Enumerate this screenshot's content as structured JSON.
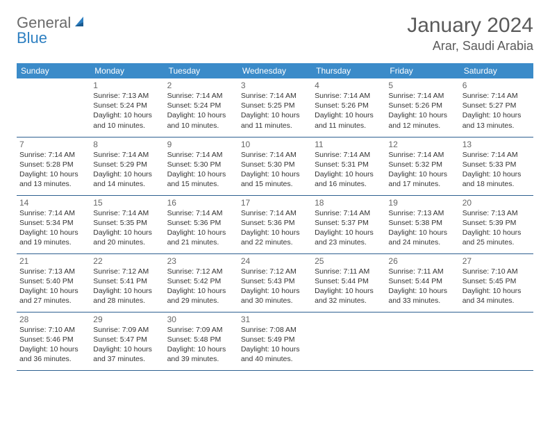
{
  "logo": {
    "text1": "General",
    "text2": "Blue"
  },
  "title": "January 2024",
  "location": "Arar, Saudi Arabia",
  "colors": {
    "header_bg": "#3b8bc9",
    "header_text": "#ffffff",
    "row_border": "#2d5f8f",
    "logo_gray": "#6a6a6a",
    "logo_blue": "#2d7fc1",
    "title_color": "#5a5a5a"
  },
  "weekdays": [
    "Sunday",
    "Monday",
    "Tuesday",
    "Wednesday",
    "Thursday",
    "Friday",
    "Saturday"
  ],
  "weeks": [
    [
      null,
      {
        "n": "1",
        "sr": "Sunrise: 7:13 AM",
        "ss": "Sunset: 5:24 PM",
        "dl": "Daylight: 10 hours and 10 minutes."
      },
      {
        "n": "2",
        "sr": "Sunrise: 7:14 AM",
        "ss": "Sunset: 5:24 PM",
        "dl": "Daylight: 10 hours and 10 minutes."
      },
      {
        "n": "3",
        "sr": "Sunrise: 7:14 AM",
        "ss": "Sunset: 5:25 PM",
        "dl": "Daylight: 10 hours and 11 minutes."
      },
      {
        "n": "4",
        "sr": "Sunrise: 7:14 AM",
        "ss": "Sunset: 5:26 PM",
        "dl": "Daylight: 10 hours and 11 minutes."
      },
      {
        "n": "5",
        "sr": "Sunrise: 7:14 AM",
        "ss": "Sunset: 5:26 PM",
        "dl": "Daylight: 10 hours and 12 minutes."
      },
      {
        "n": "6",
        "sr": "Sunrise: 7:14 AM",
        "ss": "Sunset: 5:27 PM",
        "dl": "Daylight: 10 hours and 13 minutes."
      }
    ],
    [
      {
        "n": "7",
        "sr": "Sunrise: 7:14 AM",
        "ss": "Sunset: 5:28 PM",
        "dl": "Daylight: 10 hours and 13 minutes."
      },
      {
        "n": "8",
        "sr": "Sunrise: 7:14 AM",
        "ss": "Sunset: 5:29 PM",
        "dl": "Daylight: 10 hours and 14 minutes."
      },
      {
        "n": "9",
        "sr": "Sunrise: 7:14 AM",
        "ss": "Sunset: 5:30 PM",
        "dl": "Daylight: 10 hours and 15 minutes."
      },
      {
        "n": "10",
        "sr": "Sunrise: 7:14 AM",
        "ss": "Sunset: 5:30 PM",
        "dl": "Daylight: 10 hours and 15 minutes."
      },
      {
        "n": "11",
        "sr": "Sunrise: 7:14 AM",
        "ss": "Sunset: 5:31 PM",
        "dl": "Daylight: 10 hours and 16 minutes."
      },
      {
        "n": "12",
        "sr": "Sunrise: 7:14 AM",
        "ss": "Sunset: 5:32 PM",
        "dl": "Daylight: 10 hours and 17 minutes."
      },
      {
        "n": "13",
        "sr": "Sunrise: 7:14 AM",
        "ss": "Sunset: 5:33 PM",
        "dl": "Daylight: 10 hours and 18 minutes."
      }
    ],
    [
      {
        "n": "14",
        "sr": "Sunrise: 7:14 AM",
        "ss": "Sunset: 5:34 PM",
        "dl": "Daylight: 10 hours and 19 minutes."
      },
      {
        "n": "15",
        "sr": "Sunrise: 7:14 AM",
        "ss": "Sunset: 5:35 PM",
        "dl": "Daylight: 10 hours and 20 minutes."
      },
      {
        "n": "16",
        "sr": "Sunrise: 7:14 AM",
        "ss": "Sunset: 5:36 PM",
        "dl": "Daylight: 10 hours and 21 minutes."
      },
      {
        "n": "17",
        "sr": "Sunrise: 7:14 AM",
        "ss": "Sunset: 5:36 PM",
        "dl": "Daylight: 10 hours and 22 minutes."
      },
      {
        "n": "18",
        "sr": "Sunrise: 7:14 AM",
        "ss": "Sunset: 5:37 PM",
        "dl": "Daylight: 10 hours and 23 minutes."
      },
      {
        "n": "19",
        "sr": "Sunrise: 7:13 AM",
        "ss": "Sunset: 5:38 PM",
        "dl": "Daylight: 10 hours and 24 minutes."
      },
      {
        "n": "20",
        "sr": "Sunrise: 7:13 AM",
        "ss": "Sunset: 5:39 PM",
        "dl": "Daylight: 10 hours and 25 minutes."
      }
    ],
    [
      {
        "n": "21",
        "sr": "Sunrise: 7:13 AM",
        "ss": "Sunset: 5:40 PM",
        "dl": "Daylight: 10 hours and 27 minutes."
      },
      {
        "n": "22",
        "sr": "Sunrise: 7:12 AM",
        "ss": "Sunset: 5:41 PM",
        "dl": "Daylight: 10 hours and 28 minutes."
      },
      {
        "n": "23",
        "sr": "Sunrise: 7:12 AM",
        "ss": "Sunset: 5:42 PM",
        "dl": "Daylight: 10 hours and 29 minutes."
      },
      {
        "n": "24",
        "sr": "Sunrise: 7:12 AM",
        "ss": "Sunset: 5:43 PM",
        "dl": "Daylight: 10 hours and 30 minutes."
      },
      {
        "n": "25",
        "sr": "Sunrise: 7:11 AM",
        "ss": "Sunset: 5:44 PM",
        "dl": "Daylight: 10 hours and 32 minutes."
      },
      {
        "n": "26",
        "sr": "Sunrise: 7:11 AM",
        "ss": "Sunset: 5:44 PM",
        "dl": "Daylight: 10 hours and 33 minutes."
      },
      {
        "n": "27",
        "sr": "Sunrise: 7:10 AM",
        "ss": "Sunset: 5:45 PM",
        "dl": "Daylight: 10 hours and 34 minutes."
      }
    ],
    [
      {
        "n": "28",
        "sr": "Sunrise: 7:10 AM",
        "ss": "Sunset: 5:46 PM",
        "dl": "Daylight: 10 hours and 36 minutes."
      },
      {
        "n": "29",
        "sr": "Sunrise: 7:09 AM",
        "ss": "Sunset: 5:47 PM",
        "dl": "Daylight: 10 hours and 37 minutes."
      },
      {
        "n": "30",
        "sr": "Sunrise: 7:09 AM",
        "ss": "Sunset: 5:48 PM",
        "dl": "Daylight: 10 hours and 39 minutes."
      },
      {
        "n": "31",
        "sr": "Sunrise: 7:08 AM",
        "ss": "Sunset: 5:49 PM",
        "dl": "Daylight: 10 hours and 40 minutes."
      },
      null,
      null,
      null
    ]
  ]
}
